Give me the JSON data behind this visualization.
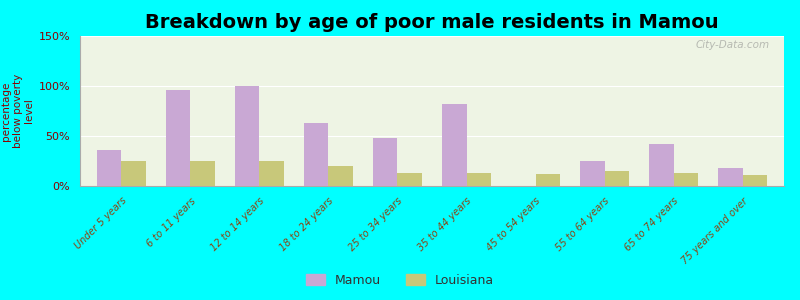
{
  "title": "Breakdown by age of poor male residents in Mamou",
  "ylabel": "percentage\nbelow poverty\nlevel",
  "categories": [
    "Under 5 years",
    "6 to 11 years",
    "12 to 14 years",
    "18 to 24 years",
    "25 to 34 years",
    "35 to 44 years",
    "45 to 54 years",
    "55 to 64 years",
    "65 to 74 years",
    "75 years and over"
  ],
  "mamou_values": [
    36,
    96,
    100,
    63,
    48,
    82,
    0,
    25,
    42,
    18
  ],
  "louisiana_values": [
    25,
    25,
    25,
    20,
    13,
    13,
    12,
    15,
    13,
    11
  ],
  "mamou_color": "#c9a8d4",
  "louisiana_color": "#c8c87a",
  "ylim": [
    0,
    150
  ],
  "yticks": [
    0,
    50,
    100,
    150
  ],
  "ytick_labels": [
    "0%",
    "50%",
    "100%",
    "150%"
  ],
  "background_color": "#00ffff",
  "plot_bg_color": "#eef4e4",
  "title_fontsize": 14,
  "bar_width": 0.35,
  "watermark": "City-Data.com"
}
